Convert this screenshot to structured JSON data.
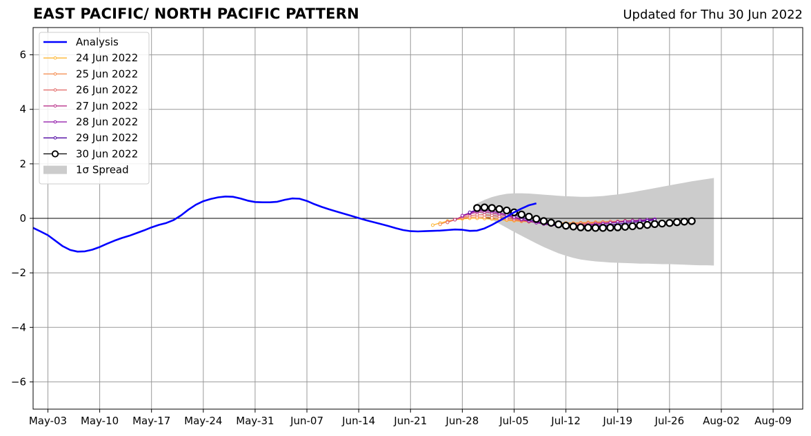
{
  "header": {
    "title": "EAST PACIFIC/ NORTH PACIFIC PATTERN",
    "subtitle": "Updated for Thu 30 Jun 2022"
  },
  "chart_data": {
    "type": "line",
    "title": "EAST PACIFIC/ NORTH PACIFIC PATTERN",
    "subtitle": "Updated for Thu 30 Jun 2022",
    "xlabel": "",
    "ylabel": "",
    "x_range": [
      "2022-05-01",
      "2022-08-13"
    ],
    "ylim": [
      -7,
      7
    ],
    "yticks": [
      -6,
      -4,
      -2,
      0,
      2,
      4,
      6
    ],
    "ytick_labels": [
      "−6",
      "−4",
      "−2",
      "0",
      "2",
      "4",
      "6"
    ],
    "xticks": [
      {
        "date": "2022-05-03",
        "label": "May-03"
      },
      {
        "date": "2022-05-10",
        "label": "May-10"
      },
      {
        "date": "2022-05-17",
        "label": "May-17"
      },
      {
        "date": "2022-05-24",
        "label": "May-24"
      },
      {
        "date": "2022-05-31",
        "label": "May-31"
      },
      {
        "date": "2022-06-07",
        "label": "Jun-07"
      },
      {
        "date": "2022-06-14",
        "label": "Jun-14"
      },
      {
        "date": "2022-06-21",
        "label": "Jun-21"
      },
      {
        "date": "2022-06-28",
        "label": "Jun-28"
      },
      {
        "date": "2022-07-05",
        "label": "Jul-05"
      },
      {
        "date": "2022-07-12",
        "label": "Jul-12"
      },
      {
        "date": "2022-07-19",
        "label": "Jul-19"
      },
      {
        "date": "2022-07-26",
        "label": "Jul-26"
      },
      {
        "date": "2022-08-02",
        "label": "Aug-02"
      },
      {
        "date": "2022-08-09",
        "label": "Aug-09"
      }
    ],
    "grid": true,
    "legend_position": "top-left",
    "analysis": {
      "name": "Analysis",
      "color": "#0000ff",
      "start_date": "2022-05-01",
      "values": [
        -0.35,
        -0.48,
        -0.62,
        -0.82,
        -1.02,
        -1.16,
        -1.22,
        -1.21,
        -1.15,
        -1.05,
        -0.93,
        -0.82,
        -0.72,
        -0.64,
        -0.54,
        -0.44,
        -0.33,
        -0.24,
        -0.17,
        -0.06,
        0.11,
        0.32,
        0.5,
        0.63,
        0.71,
        0.77,
        0.8,
        0.79,
        0.73,
        0.65,
        0.6,
        0.59,
        0.59,
        0.61,
        0.68,
        0.73,
        0.72,
        0.64,
        0.52,
        0.42,
        0.33,
        0.25,
        0.17,
        0.09,
        0.01,
        -0.07,
        -0.14,
        -0.21,
        -0.28,
        -0.36,
        -0.43,
        -0.47,
        -0.48,
        -0.47,
        -0.46,
        -0.45,
        -0.43,
        -0.41,
        -0.42,
        -0.46,
        -0.45,
        -0.37,
        -0.24,
        -0.09,
        0.06,
        0.22,
        0.36,
        0.48,
        0.55
      ]
    },
    "forecasts": [
      {
        "name": "24 Jun 2022",
        "color": "#fdb42f",
        "start_date": "2022-06-24",
        "values": [
          -0.25,
          -0.17,
          -0.1,
          -0.05,
          -0.02,
          0.0,
          0.0,
          -0.01,
          -0.03,
          -0.05,
          -0.07,
          -0.09,
          -0.11,
          -0.13,
          -0.14,
          -0.15,
          -0.16,
          -0.17,
          -0.17,
          -0.17,
          -0.16,
          -0.15,
          -0.14,
          -0.13,
          -0.12,
          -0.11,
          -0.1,
          -0.09,
          -0.08,
          -0.07,
          -0.06
        ]
      },
      {
        "name": "25 Jun 2022",
        "color": "#f48849",
        "start_date": "2022-06-25",
        "values": [
          -0.22,
          -0.12,
          -0.04,
          0.01,
          0.04,
          0.05,
          0.04,
          0.02,
          -0.01,
          -0.04,
          -0.07,
          -0.1,
          -0.12,
          -0.14,
          -0.16,
          -0.17,
          -0.18,
          -0.18,
          -0.18,
          -0.17,
          -0.16,
          -0.15,
          -0.14,
          -0.12,
          -0.11,
          -0.1,
          -0.09,
          -0.08,
          -0.07,
          -0.06
        ]
      },
      {
        "name": "26 Jun 2022",
        "color": "#e16462",
        "start_date": "2022-06-26",
        "values": [
          -0.15,
          -0.05,
          0.04,
          0.1,
          0.13,
          0.13,
          0.11,
          0.07,
          0.02,
          -0.03,
          -0.08,
          -0.12,
          -0.15,
          -0.18,
          -0.2,
          -0.21,
          -0.21,
          -0.21,
          -0.2,
          -0.19,
          -0.17,
          -0.15,
          -0.13,
          -0.11,
          -0.09,
          -0.08,
          -0.07,
          -0.06,
          -0.05
        ]
      },
      {
        "name": "27 Jun 2022",
        "color": "#b93289",
        "start_date": "2022-06-27",
        "values": [
          -0.05,
          0.08,
          0.17,
          0.22,
          0.23,
          0.2,
          0.15,
          0.09,
          0.02,
          -0.05,
          -0.11,
          -0.16,
          -0.2,
          -0.23,
          -0.24,
          -0.25,
          -0.25,
          -0.24,
          -0.23,
          -0.21,
          -0.19,
          -0.17,
          -0.14,
          -0.12,
          -0.1,
          -0.08,
          -0.06,
          -0.05
        ]
      },
      {
        "name": "28 Jun 2022",
        "color": "#8b0aa5",
        "start_date": "2022-06-28",
        "values": [
          0.1,
          0.2,
          0.27,
          0.29,
          0.26,
          0.2,
          0.13,
          0.05,
          -0.03,
          -0.1,
          -0.16,
          -0.21,
          -0.25,
          -0.27,
          -0.28,
          -0.28,
          -0.27,
          -0.25,
          -0.23,
          -0.2,
          -0.17,
          -0.14,
          -0.11,
          -0.09,
          -0.07,
          -0.05,
          -0.03
        ]
      },
      {
        "name": "29 Jun 2022",
        "color": "#4c02a1",
        "start_date": "2022-06-29",
        "values": [
          0.22,
          0.32,
          0.36,
          0.35,
          0.3,
          0.22,
          0.13,
          0.04,
          -0.05,
          -0.12,
          -0.18,
          -0.23,
          -0.27,
          -0.3,
          -0.31,
          -0.31,
          -0.3,
          -0.28,
          -0.26,
          -0.24,
          -0.21,
          -0.18,
          -0.15,
          -0.12,
          -0.09,
          -0.06
        ]
      },
      {
        "name": "30 Jun 2022",
        "color": "#000000",
        "start_date": "2022-06-30",
        "values": [
          0.38,
          0.4,
          0.38,
          0.34,
          0.29,
          0.22,
          0.14,
          0.06,
          -0.02,
          -0.1,
          -0.16,
          -0.22,
          -0.27,
          -0.3,
          -0.33,
          -0.34,
          -0.35,
          -0.35,
          -0.34,
          -0.33,
          -0.31,
          -0.29,
          -0.26,
          -0.24,
          -0.21,
          -0.19,
          -0.17,
          -0.14,
          -0.12,
          -0.1
        ]
      }
    ],
    "spread": {
      "name": "1σ Spread",
      "color": "#cccccc",
      "start_date": "2022-06-30",
      "upper": [
        0.55,
        0.68,
        0.78,
        0.85,
        0.9,
        0.92,
        0.92,
        0.91,
        0.89,
        0.87,
        0.85,
        0.83,
        0.81,
        0.8,
        0.79,
        0.79,
        0.8,
        0.82,
        0.85,
        0.88,
        0.92,
        0.96,
        1.01,
        1.06,
        1.11,
        1.16,
        1.21,
        1.26,
        1.31,
        1.36,
        1.4,
        1.44,
        1.48
      ],
      "lower": [
        0.25,
        0.1,
        -0.05,
        -0.2,
        -0.35,
        -0.5,
        -0.64,
        -0.78,
        -0.92,
        -1.05,
        -1.17,
        -1.28,
        -1.37,
        -1.45,
        -1.51,
        -1.55,
        -1.58,
        -1.6,
        -1.62,
        -1.63,
        -1.64,
        -1.65,
        -1.66,
        -1.66,
        -1.67,
        -1.68,
        -1.68,
        -1.69,
        -1.7,
        -1.71,
        -1.72,
        -1.72,
        -1.73
      ]
    },
    "legend": [
      "Analysis",
      "24 Jun 2022",
      "25 Jun 2022",
      "26 Jun 2022",
      "27 Jun 2022",
      "28 Jun 2022",
      "29 Jun 2022",
      "30 Jun 2022",
      "1σ Spread"
    ]
  }
}
